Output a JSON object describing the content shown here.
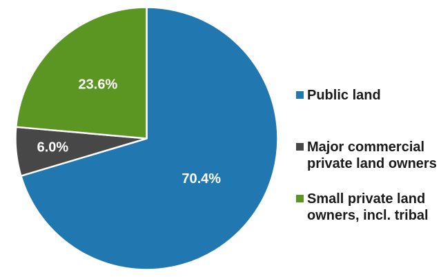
{
  "chart_data": {
    "type": "pie",
    "title": "",
    "slices": [
      {
        "label": "Public land",
        "value": 70.4,
        "display_label": "70.4%",
        "color": "#2178B0"
      },
      {
        "label": "Major commercial private land owners",
        "value": 6.0,
        "display_label": "6.0%",
        "color": "#474747"
      },
      {
        "label": "Small private land owners, incl. tribal",
        "value": 23.6,
        "display_label": "23.6%",
        "color": "#5B9623"
      }
    ],
    "start_angle_deg": 0,
    "direction": "clockwise",
    "legend_position": "right",
    "data_label_color": "#FFFFFF",
    "slice_border_color": "#FFFFFF",
    "legend_text_color": "#1A1A1A",
    "background_color": "#FFFFFF"
  }
}
